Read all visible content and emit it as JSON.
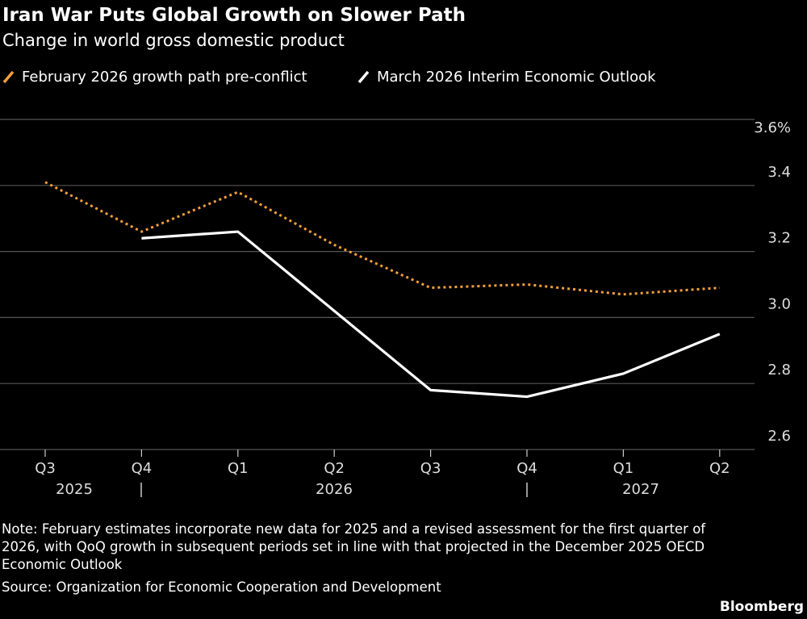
{
  "chart_data": {
    "type": "line",
    "title": "Iran War Puts Global Growth on Slower Path",
    "subtitle": "Change in world gross domestic product",
    "categories": [
      "Q3",
      "Q4",
      "Q1",
      "Q2",
      "Q3",
      "Q4",
      "Q1",
      "Q2"
    ],
    "year_labels": [
      "2025",
      "2026",
      "2027"
    ],
    "series": [
      {
        "name": "February 2026 growth path pre-conflict",
        "color": "#f5a03a",
        "dashed": true,
        "values": [
          3.41,
          3.26,
          3.38,
          3.22,
          3.09,
          3.1,
          3.07,
          3.09
        ]
      },
      {
        "name": "March 2026 Interim Economic Outlook",
        "color": "#ffffff",
        "dashed": false,
        "values": [
          null,
          3.24,
          3.26,
          3.02,
          2.78,
          2.76,
          2.83,
          2.95
        ]
      }
    ],
    "ylim": [
      2.6,
      3.6
    ],
    "yticks": [
      2.6,
      2.8,
      {
        "value": 3,
        "label": "3.0"
      },
      3.2,
      3.4,
      {
        "value": 3.6,
        "label": "3.6%"
      }
    ],
    "grid": true,
    "note": [
      "Note: February estimates incorporate new data for 2025 and a revised assessment for the first quarter of",
      "2026, with QoQ growth in subsequent periods set in line with that projected in the December 2025 OECD",
      "Economic Outlook"
    ],
    "source": "Source: Organization for Economic Cooperation and Development",
    "brand": "Bloomberg"
  }
}
